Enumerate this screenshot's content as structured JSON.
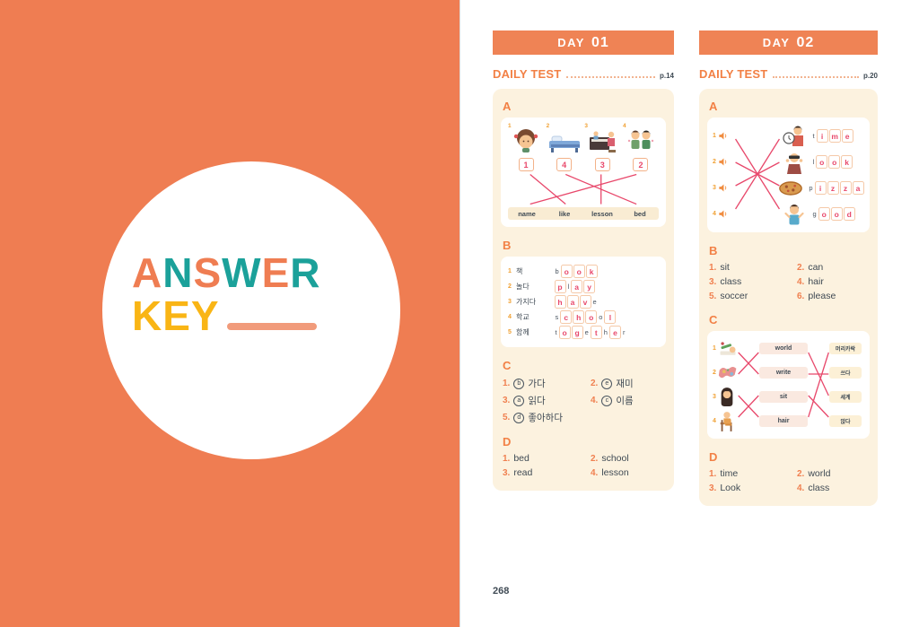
{
  "colors": {
    "background_orange": "#EF7D52",
    "header_bar_orange": "#EF8355",
    "heading_orange": "#F28045",
    "teal": "#1BA19A",
    "yellow": "#F9B515",
    "salmon_underline": "#F19B7B",
    "panel_cream": "#FCF2DF",
    "match_line_red": "#E8486B",
    "letter_red": "#E8486B",
    "text_navy": "#3F4A54"
  },
  "left_panel": {
    "answer_letters": [
      {
        "ch": "A",
        "color": "#EF7D52"
      },
      {
        "ch": "N",
        "color": "#1BA19A"
      },
      {
        "ch": "S",
        "color": "#EF7D52"
      },
      {
        "ch": "W",
        "color": "#1BA19A"
      },
      {
        "ch": "E",
        "color": "#EF7D52"
      },
      {
        "ch": "R",
        "color": "#1BA19A"
      }
    ],
    "key": {
      "text": "KEY",
      "color": "#F9B515"
    }
  },
  "page_number": "268",
  "days": [
    {
      "header": {
        "prefix": "DAY",
        "number": "01"
      },
      "test": {
        "label": "DAILY TEST",
        "page": "p.14"
      },
      "a": {
        "label": "A",
        "item_nums": [
          "1",
          "2",
          "3",
          "4"
        ],
        "icons": [
          "girl",
          "bed",
          "lesson",
          "kids"
        ],
        "numbers": [
          "1",
          "4",
          "3",
          "2"
        ],
        "words": [
          "name",
          "like",
          "lesson",
          "bed"
        ],
        "pairs": [
          [
            0,
            1
          ],
          [
            1,
            3
          ],
          [
            2,
            2
          ],
          [
            3,
            0
          ]
        ]
      },
      "b": {
        "label": "B",
        "rows": [
          {
            "n": "1",
            "kr": "책",
            "letters": [
              [
                "b",
                0
              ],
              [
                "o",
                1
              ],
              [
                "o",
                1
              ],
              [
                "k",
                1
              ]
            ]
          },
          {
            "n": "2",
            "kr": "놀다",
            "letters": [
              [
                "p",
                1
              ],
              [
                "l",
                0
              ],
              [
                "a",
                1
              ],
              [
                "y",
                1
              ]
            ]
          },
          {
            "n": "3",
            "kr": "가지다",
            "letters": [
              [
                "h",
                1
              ],
              [
                "a",
                1
              ],
              [
                "v",
                1
              ],
              [
                "e",
                0
              ]
            ]
          },
          {
            "n": "4",
            "kr": "학교",
            "letters": [
              [
                "s",
                0
              ],
              [
                "c",
                1
              ],
              [
                "h",
                1
              ],
              [
                "o",
                1
              ],
              [
                "o",
                0
              ],
              [
                "l",
                1
              ]
            ]
          },
          {
            "n": "5",
            "kr": "함께",
            "letters": [
              [
                "t",
                0
              ],
              [
                "o",
                1
              ],
              [
                "g",
                1
              ],
              [
                "e",
                0
              ],
              [
                "t",
                1
              ],
              [
                "h",
                0
              ],
              [
                "e",
                1
              ],
              [
                "r",
                0
              ]
            ]
          }
        ]
      },
      "c": {
        "label": "C",
        "items": [
          {
            "n": "1.",
            "circle": "b",
            "text": "가다"
          },
          {
            "n": "2.",
            "circle": "e",
            "text": "재미"
          },
          {
            "n": "3.",
            "circle": "a",
            "text": "읽다"
          },
          {
            "n": "4.",
            "circle": "c",
            "text": "이름"
          },
          {
            "n": "5.",
            "circle": "d",
            "text": "좋아하다"
          }
        ]
      },
      "d": {
        "label": "D",
        "items": [
          {
            "n": "1.",
            "text": "bed"
          },
          {
            "n": "2.",
            "text": "school"
          },
          {
            "n": "3.",
            "text": "read"
          },
          {
            "n": "4.",
            "text": "lesson"
          }
        ]
      }
    },
    {
      "header": {
        "prefix": "DAY",
        "number": "02"
      },
      "test": {
        "label": "DAILY TEST",
        "page": "p.20"
      },
      "a": {
        "label": "A",
        "rows": [
          {
            "n": "1",
            "icon": "boy-with-clock",
            "letters": [
              [
                "t",
                0
              ],
              [
                "i",
                1
              ],
              [
                "m",
                1
              ],
              [
                "e",
                1
              ]
            ]
          },
          {
            "n": "2",
            "icon": "person-looking",
            "letters": [
              [
                "l",
                0
              ],
              [
                "o",
                1
              ],
              [
                "o",
                1
              ],
              [
                "k",
                1
              ]
            ]
          },
          {
            "n": "3",
            "icon": "pizza",
            "letters": [
              [
                "p",
                0
              ],
              [
                "i",
                1
              ],
              [
                "z",
                1
              ],
              [
                "z",
                1
              ],
              [
                "a",
                1
              ]
            ]
          },
          {
            "n": "4",
            "icon": "cheering-boy",
            "letters": [
              [
                "g",
                0
              ],
              [
                "o",
                1
              ],
              [
                "o",
                1
              ],
              [
                "d",
                1
              ]
            ]
          }
        ],
        "pairs": [
          [
            0,
            3
          ],
          [
            1,
            2
          ],
          [
            2,
            1
          ],
          [
            3,
            0
          ]
        ]
      },
      "b": {
        "label": "B",
        "items": [
          {
            "n": "1.",
            "text": "sit"
          },
          {
            "n": "2.",
            "text": "can"
          },
          {
            "n": "3.",
            "text": "class"
          },
          {
            "n": "4.",
            "text": "hair"
          },
          {
            "n": "5.",
            "text": "soccer"
          },
          {
            "n": "6.",
            "text": "please"
          }
        ]
      },
      "c": {
        "label": "C",
        "item_nums": [
          "1",
          "2",
          "3",
          "4"
        ],
        "icons": [
          "writing-hands",
          "world-map",
          "long-hair-woman",
          "sitting-person"
        ],
        "middle_words": [
          "world",
          "write",
          "sit",
          "hair"
        ],
        "right_words": [
          "머리카락",
          "쓰다",
          "세계",
          "앉다"
        ],
        "left_pairs": [
          [
            0,
            1
          ],
          [
            1,
            0
          ],
          [
            2,
            3
          ],
          [
            3,
            2
          ]
        ],
        "right_pairs": [
          [
            0,
            2
          ],
          [
            1,
            1
          ],
          [
            2,
            3
          ],
          [
            3,
            0
          ]
        ]
      },
      "d": {
        "label": "D",
        "items": [
          {
            "n": "1.",
            "text": "time"
          },
          {
            "n": "2.",
            "text": "world"
          },
          {
            "n": "3.",
            "text": "Look"
          },
          {
            "n": "4.",
            "text": "class"
          }
        ]
      }
    }
  ]
}
